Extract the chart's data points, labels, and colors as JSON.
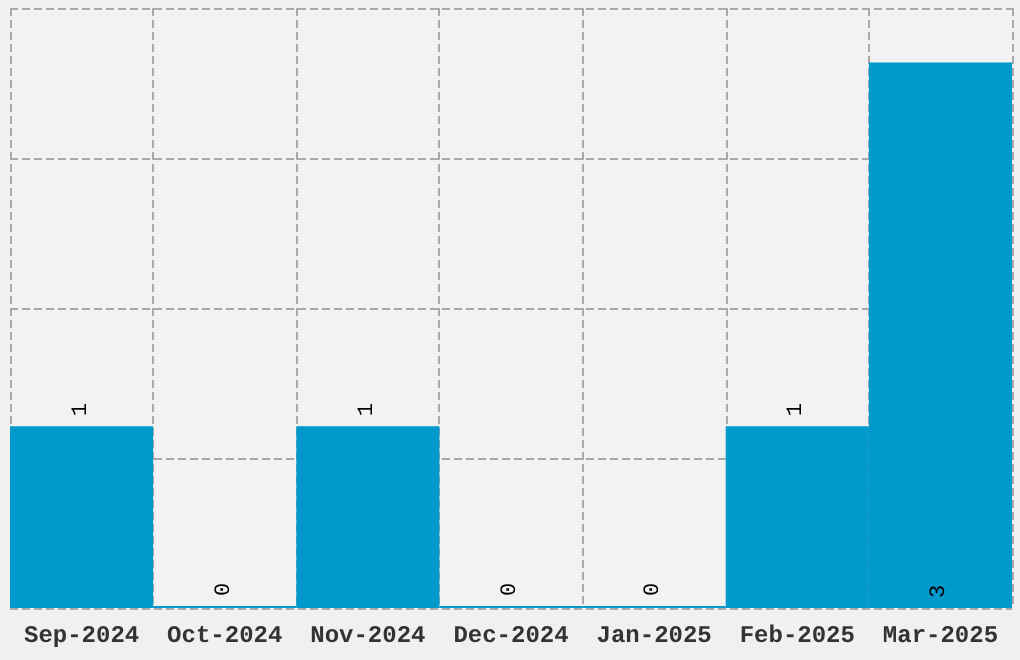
{
  "chart_data": {
    "type": "bar",
    "categories": [
      "Sep-2024",
      "Oct-2024",
      "Nov-2024",
      "Dec-2024",
      "Jan-2025",
      "Feb-2025",
      "Mar-2025"
    ],
    "values": [
      1,
      0,
      1,
      0,
      0,
      1,
      3
    ],
    "color": "#0099cc",
    "data_labels": true,
    "grid": true,
    "tick_labels": "x",
    "ylim": [
      0,
      3.3
    ],
    "yticks": [
      {
        "value": 0,
        "label": null
      },
      {
        "value": 0.825,
        "label": null
      },
      {
        "value": 1.65,
        "label": null
      },
      {
        "value": 2.475,
        "label": null
      },
      {
        "value": 3.3,
        "label": null
      }
    ]
  }
}
